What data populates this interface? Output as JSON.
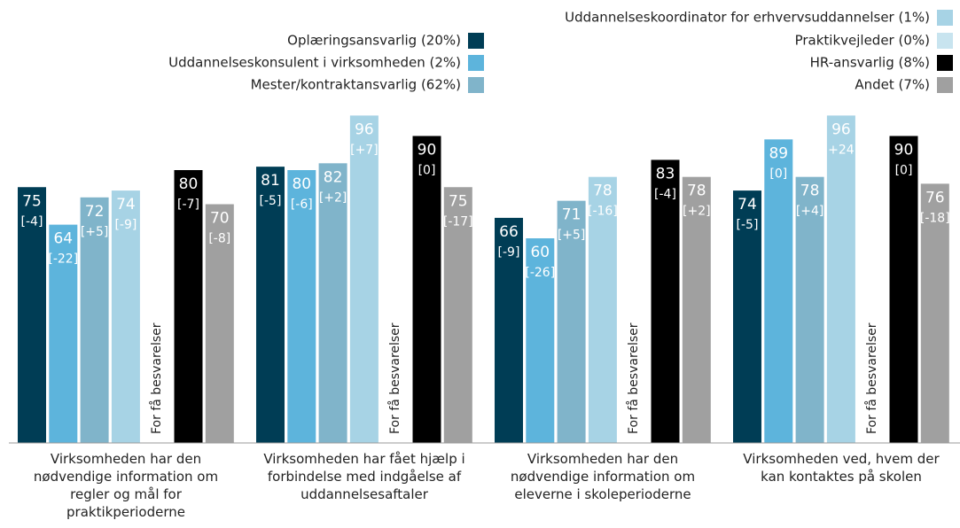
{
  "chart_data": {
    "type": "bar",
    "categories": [
      "Virksomheden har den nødvendige information om regler og mål for praktikperioderne",
      "Virksomheden har fået hjælp i forbindelse med indgåelse af uddannelsesaftaler",
      "Virksomheden har den nødvendige information om eleverne i skoleperioderne",
      "Virksomheden ved, hvem der kan kontaktes på skolen"
    ],
    "ylim": [
      0,
      100
    ],
    "no_data_label": "For få besvarelser",
    "series": [
      {
        "name": "Oplæringsansvarlig (20%)",
        "color": "#003d55",
        "values": [
          75,
          81,
          66,
          74
        ],
        "changes": [
          -4,
          -5,
          -9,
          -5
        ],
        "change_labels": [
          "[-4]",
          "[-5]",
          "[-9]",
          "[-5]"
        ]
      },
      {
        "name": "Uddannelseskonsulent i virksomheden (2%)",
        "color": "#5db4dc",
        "values": [
          64,
          80,
          60,
          89
        ],
        "changes": [
          -22,
          -6,
          -26,
          0
        ],
        "change_labels": [
          "[-22]",
          "[-6]",
          "[-26]",
          "[0]"
        ]
      },
      {
        "name": "Mester/kontraktansvarlig (62%)",
        "color": "#80b4ca",
        "values": [
          72,
          82,
          71,
          78
        ],
        "changes": [
          5,
          2,
          5,
          4
        ],
        "change_labels": [
          "[+5]",
          "[+2]",
          "[+5]",
          "[+4]"
        ]
      },
      {
        "name": "Uddannelseskoordinator for erhvervsuddannelser (1%)",
        "color": "#a7d3e5",
        "values": [
          74,
          96,
          78,
          96
        ],
        "changes": [
          -9,
          7,
          -16,
          24
        ],
        "change_labels": [
          "[-9]",
          "[+7]",
          "[-16]",
          "+24"
        ]
      },
      {
        "name": "Praktikvejleder (0%)",
        "color": "#c8e4ef",
        "values": [
          null,
          null,
          null,
          null
        ]
      },
      {
        "name": "HR-ansvarlig (8%)",
        "color": "#000000",
        "values": [
          80,
          90,
          83,
          90
        ],
        "changes": [
          -7,
          0,
          -4,
          0
        ],
        "change_labels": [
          "[-7]",
          "[0]",
          "[-4]",
          "[0]"
        ]
      },
      {
        "name": "Andet (7%)",
        "color": "#a0a0a0",
        "values": [
          70,
          75,
          78,
          76
        ],
        "changes": [
          -8,
          -17,
          2,
          -18
        ],
        "change_labels": [
          "[-8]",
          "[-17]",
          "[+2]",
          "[-18]"
        ]
      }
    ]
  }
}
